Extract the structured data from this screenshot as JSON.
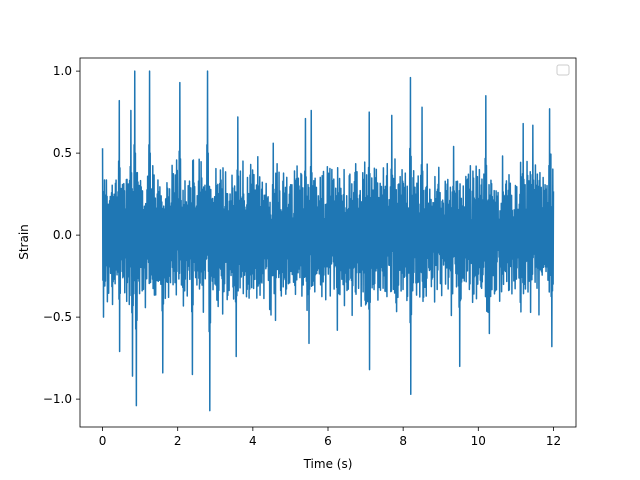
{
  "chart_data": {
    "type": "line",
    "title": "",
    "xlabel": "Time (s)",
    "ylabel": "Strain",
    "xlim": [
      -0.6,
      12.6
    ],
    "ylim": [
      -1.17,
      1.08
    ],
    "xticks": [
      0,
      2,
      4,
      6,
      8,
      10,
      12
    ],
    "xtick_labels": [
      "0",
      "2",
      "4",
      "6",
      "8",
      "10",
      "12"
    ],
    "yticks": [
      -1.0,
      -0.5,
      0.0,
      0.5,
      1.0
    ],
    "ytick_labels": [
      "−1.0",
      "−0.5",
      "0.0",
      "0.5",
      "1.0"
    ],
    "grid": false,
    "legend": {
      "placement": "top-right",
      "entries": []
    },
    "series": [
      {
        "color": "#1f77b4",
        "x_start": 0,
        "x_end": 12,
        "peaks": [
          {
            "x": 0.0,
            "y": 0.53
          },
          {
            "x": 0.03,
            "y": -0.5
          },
          {
            "x": 0.45,
            "y": 0.82
          },
          {
            "x": 0.45,
            "y": -0.71
          },
          {
            "x": 0.75,
            "y": 0.76
          },
          {
            "x": 0.85,
            "y": 1.0
          },
          {
            "x": 0.9,
            "y": -1.04
          },
          {
            "x": 0.8,
            "y": -0.86
          },
          {
            "x": 1.25,
            "y": 1.0
          },
          {
            "x": 1.6,
            "y": -0.84
          },
          {
            "x": 2.05,
            "y": 0.93
          },
          {
            "x": 2.4,
            "y": -0.85
          },
          {
            "x": 2.8,
            "y": 1.0
          },
          {
            "x": 2.85,
            "y": -1.07
          },
          {
            "x": 3.6,
            "y": 0.72
          },
          {
            "x": 3.55,
            "y": -0.74
          },
          {
            "x": 4.55,
            "y": 0.56
          },
          {
            "x": 4.6,
            "y": -0.52
          },
          {
            "x": 5.4,
            "y": 0.71
          },
          {
            "x": 5.55,
            "y": 0.76
          },
          {
            "x": 5.5,
            "y": -0.66
          },
          {
            "x": 6.25,
            "y": -0.58
          },
          {
            "x": 7.1,
            "y": 0.75
          },
          {
            "x": 7.1,
            "y": -0.82
          },
          {
            "x": 7.7,
            "y": 0.73
          },
          {
            "x": 8.2,
            "y": 0.96
          },
          {
            "x": 8.2,
            "y": -0.97
          },
          {
            "x": 8.5,
            "y": 0.78
          },
          {
            "x": 9.35,
            "y": 0.54
          },
          {
            "x": 9.5,
            "y": -0.8
          },
          {
            "x": 10.2,
            "y": 0.85
          },
          {
            "x": 10.3,
            "y": -0.6
          },
          {
            "x": 11.2,
            "y": 0.68
          },
          {
            "x": 11.45,
            "y": 0.67
          },
          {
            "x": 11.9,
            "y": 0.77
          },
          {
            "x": 11.95,
            "y": -0.68
          }
        ],
        "typical_amplitude": 0.3
      }
    ]
  }
}
